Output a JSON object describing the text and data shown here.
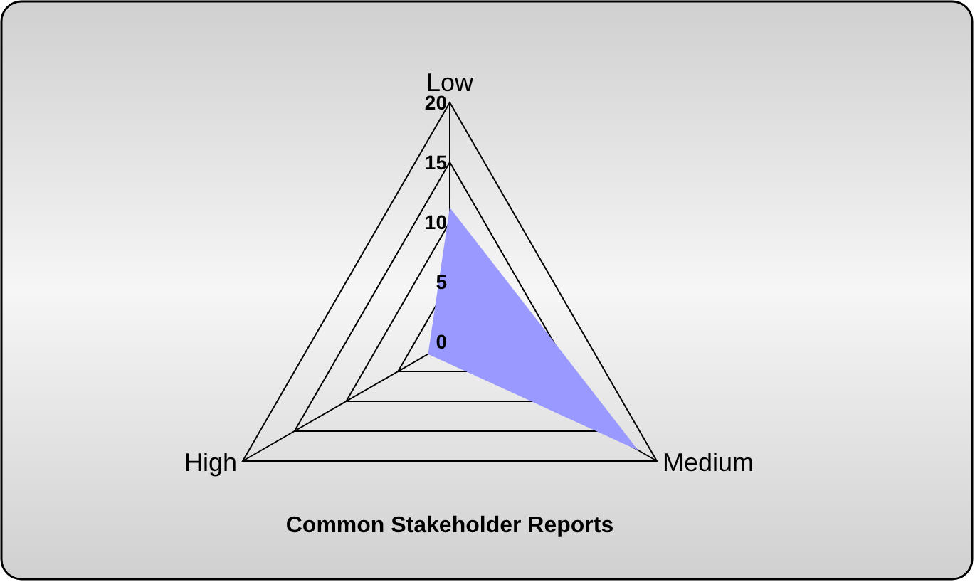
{
  "chart_data": {
    "type": "radar",
    "title": "Common Stakeholder Reports",
    "categories": [
      "Low",
      "Medium",
      "High"
    ],
    "series": [
      {
        "color": "#9999ff",
        "values": [
          11.2,
          18.2,
          2.1
        ]
      }
    ],
    "ylim": [
      0,
      20
    ],
    "yticks": [
      0,
      5,
      10,
      15,
      20
    ],
    "grid": true
  }
}
